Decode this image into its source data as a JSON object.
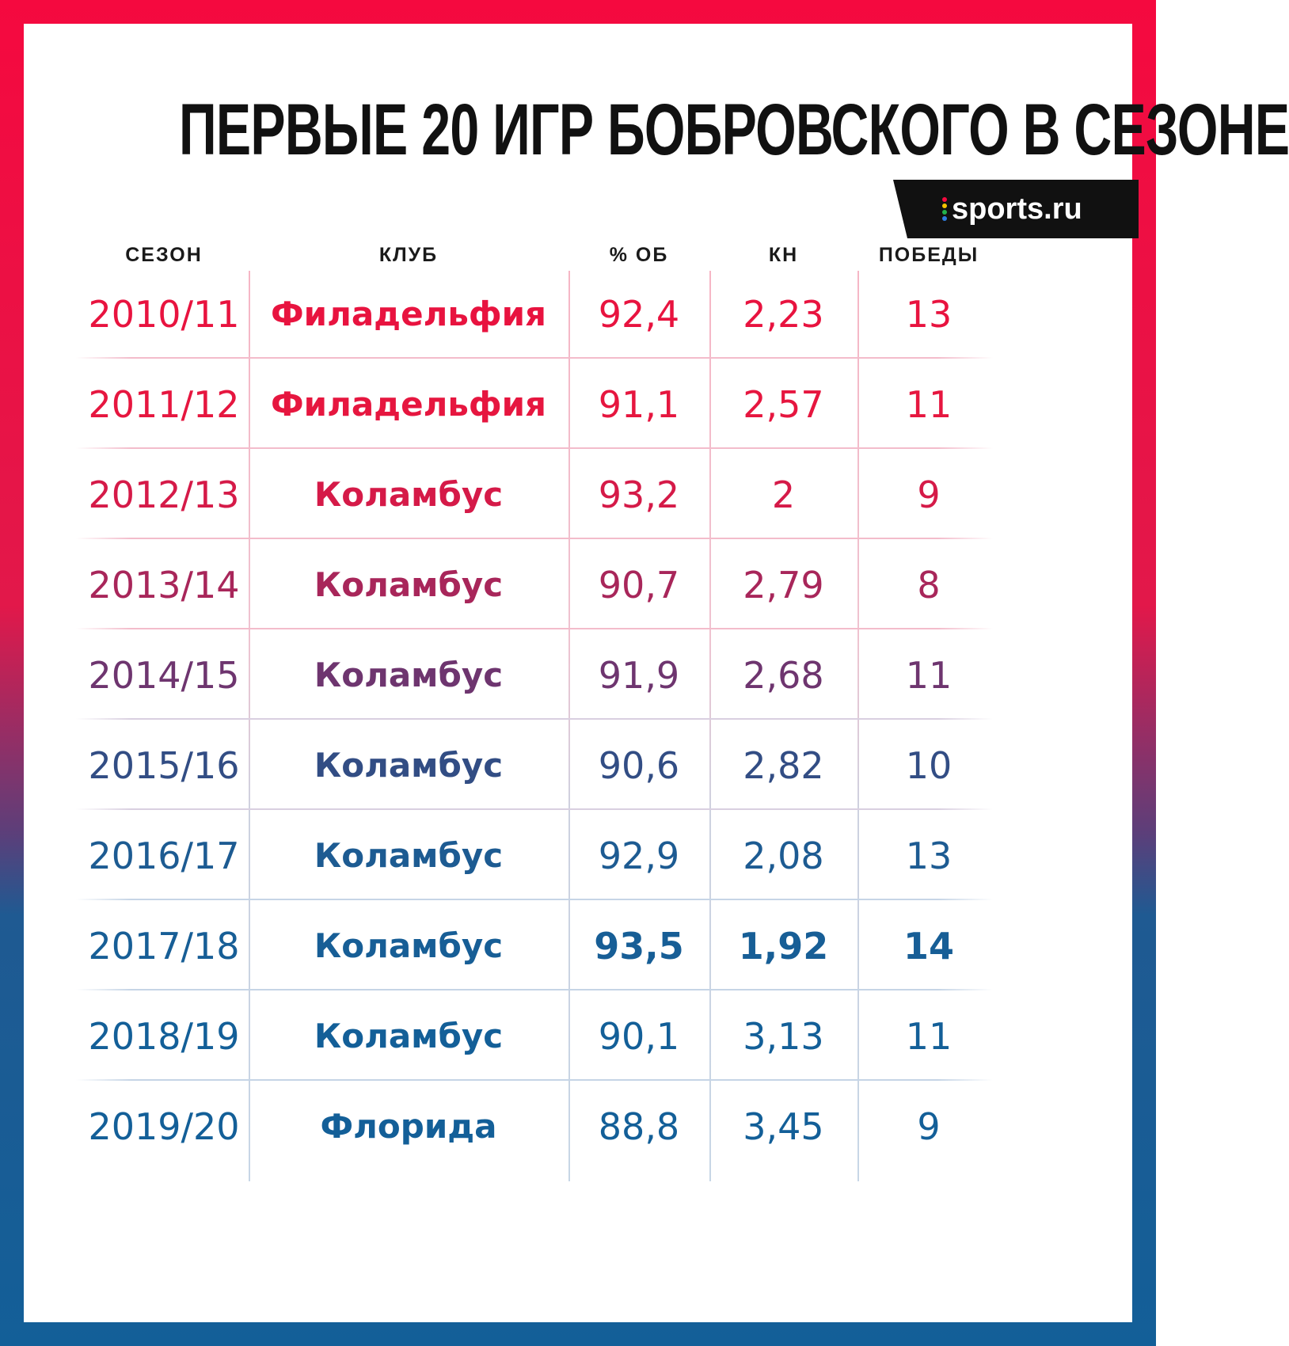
{
  "title": "ПЕРВЫЕ 20 ИГР БОБРОВСКОГО В СЕЗОНЕ",
  "logo": {
    "text": "sports.ru"
  },
  "table": {
    "headers": [
      "СЕЗОН",
      "КЛУБ",
      "% ОБ",
      "КН",
      "ПОБЕДЫ"
    ],
    "rows": [
      [
        "2010/11",
        "Филадельфия",
        "92,4",
        "2,23",
        "13"
      ],
      [
        "2011/12",
        "Филадельфия",
        "91,1",
        "2,57",
        "11"
      ],
      [
        "2012/13",
        "Коламбус",
        "93,2",
        "2",
        "9"
      ],
      [
        "2013/14",
        "Коламбус",
        "90,7",
        "2,79",
        "8"
      ],
      [
        "2014/15",
        "Коламбус",
        "91,9",
        "2,68",
        "11"
      ],
      [
        "2015/16",
        "Коламбус",
        "90,6",
        "2,82",
        "10"
      ],
      [
        "2016/17",
        "Коламбус",
        "92,9",
        "2,08",
        "13"
      ],
      [
        "2017/18",
        "Коламбус",
        "93,5",
        "1,92",
        "14"
      ],
      [
        "2018/19",
        "Коламбус",
        "90,1",
        "3,13",
        "11"
      ],
      [
        "2019/20",
        "Флорида",
        "88,8",
        "3,45",
        "9"
      ]
    ],
    "row_colors": [
      "#e8133f",
      "#e6163f",
      "#d51a48",
      "#a8265a",
      "#6e356f",
      "#324d84",
      "#1d5b92",
      "#175e96",
      "#135f98",
      "#135f98"
    ],
    "highlight_row": 7,
    "highlight_cols": [
      2,
      3,
      4
    ]
  }
}
